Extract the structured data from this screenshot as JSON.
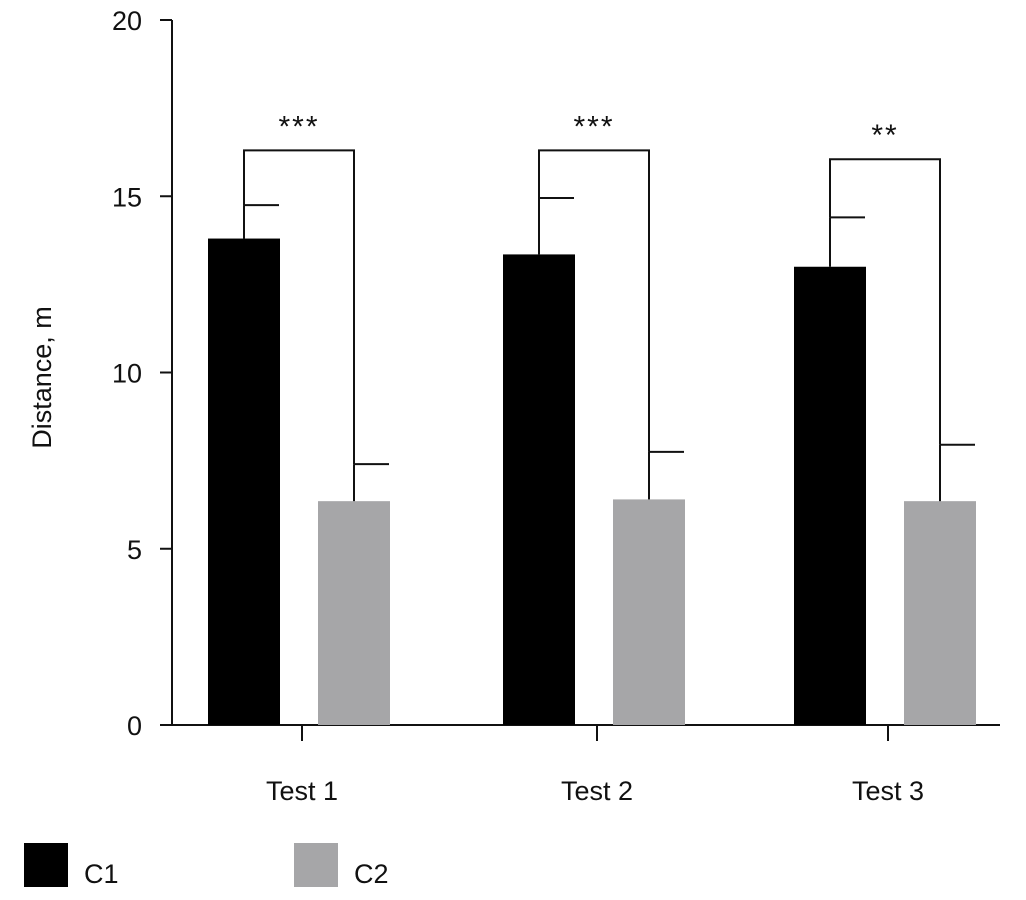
{
  "chart_data": {
    "type": "bar",
    "title": "",
    "xlabel": "",
    "ylabel": "Distance, m",
    "ylim": [
      0,
      20
    ],
    "yticks": [
      0,
      5,
      10,
      15,
      20
    ],
    "grid": false,
    "legend_position": "bottom-left",
    "categories": [
      "Test 1",
      "Test 2",
      "Test 3"
    ],
    "series": [
      {
        "name": "C1",
        "color": "#000000",
        "values": [
          13.8,
          13.35,
          13.0
        ],
        "errors": [
          0.95,
          1.6,
          1.4
        ]
      },
      {
        "name": "C2",
        "color": "#a6a6a8",
        "values": [
          6.35,
          6.4,
          6.35
        ],
        "errors": [
          1.05,
          1.35,
          1.6
        ]
      }
    ],
    "significance": [
      {
        "category": "Test 1",
        "label": "***",
        "y": 16.3
      },
      {
        "category": "Test 2",
        "label": "***",
        "y": 16.3
      },
      {
        "category": "Test 3",
        "label": "**",
        "y": 16.05
      }
    ]
  }
}
